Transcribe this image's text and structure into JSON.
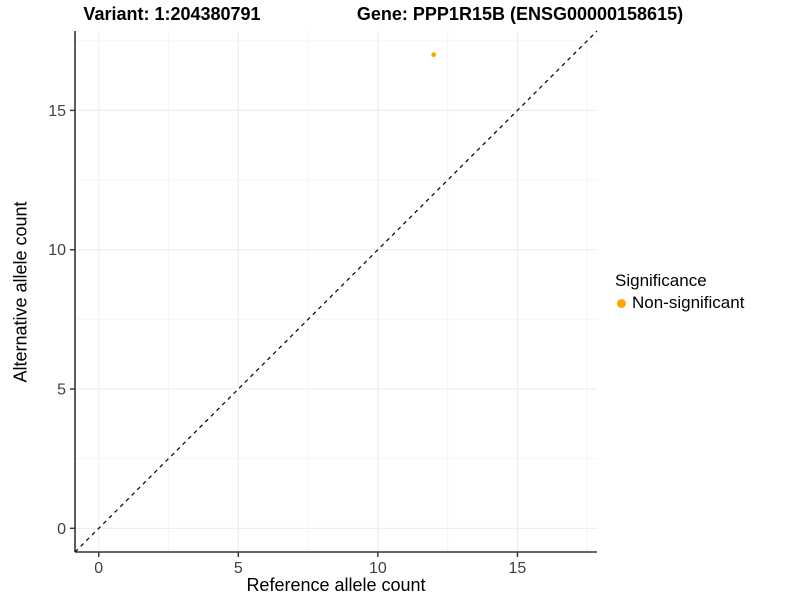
{
  "titles": {
    "variant": "Variant: 1:204380791",
    "gene": "Gene: PPP1R15B (ENSG00000158615)"
  },
  "axes": {
    "x_label": "Reference allele count",
    "y_label": "Alternative allele count",
    "x_tick_labels": [
      "0",
      "5",
      "10",
      "15"
    ],
    "y_tick_labels": [
      "0",
      "5",
      "10",
      "15"
    ]
  },
  "legend": {
    "title": "Significance",
    "entries": [
      {
        "label": "Non-significant",
        "color": "#FFA500"
      }
    ]
  },
  "colors": {
    "background": "#FFFFFF",
    "point": "#FFA500",
    "grid_major": "#EBEBEB",
    "grid_minor": "#F5F5F5",
    "axis_line": "#333333",
    "tick_mark": "#333333",
    "tick_text": "#404040",
    "abline": "#000000"
  },
  "chart_data": {
    "type": "scatter",
    "title": "Variant: 1:204380791   |   Gene: PPP1R15B (ENSG00000158615)",
    "xlabel": "Reference allele count",
    "ylabel": "Alternative allele count",
    "xlim": [
      -0.85,
      17.85
    ],
    "ylim": [
      -0.85,
      17.85
    ],
    "x_ticks": [
      0,
      5,
      10,
      15
    ],
    "y_ticks": [
      0,
      5,
      10,
      15
    ],
    "minor_gridlines": [
      2.5,
      7.5,
      12.5,
      17.5
    ],
    "grid": true,
    "legend_position": "right",
    "series": [
      {
        "name": "Non-significant",
        "color": "#FFA500",
        "points": [
          {
            "x": 12,
            "y": 17
          }
        ]
      }
    ],
    "reference_line": {
      "type": "identity",
      "slope": 1,
      "intercept": 0,
      "style": "dashed",
      "color": "#000000"
    }
  }
}
